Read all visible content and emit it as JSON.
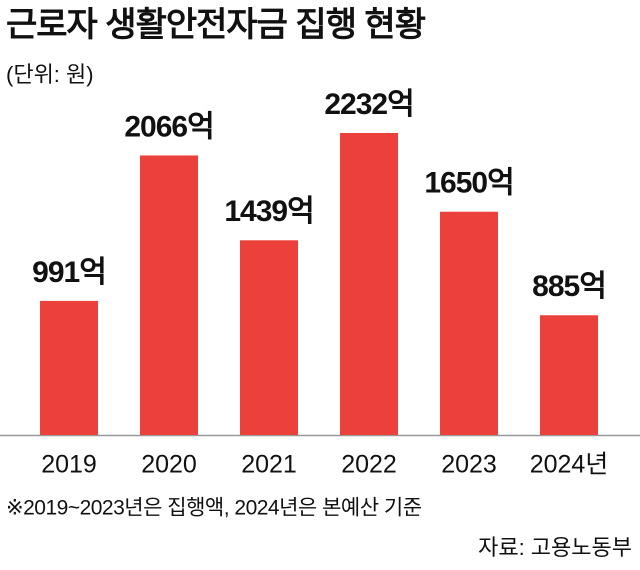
{
  "chart_data": {
    "type": "bar",
    "title": "근로자 생활안전자금 집행 현황",
    "subtitle": "(단위: 원)",
    "categories": [
      "2019",
      "2020",
      "2021",
      "2022",
      "2023",
      "2024년"
    ],
    "values": [
      991,
      2066,
      1439,
      2232,
      1650,
      885
    ],
    "value_labels": [
      "991억",
      "2066억",
      "1439억",
      "2232억",
      "1650억",
      "885억"
    ],
    "color": "#ec403a",
    "note": "※2019~2023년은 집행액, 2024년은 본예산 기준",
    "source": "자료: 고용노동부"
  }
}
